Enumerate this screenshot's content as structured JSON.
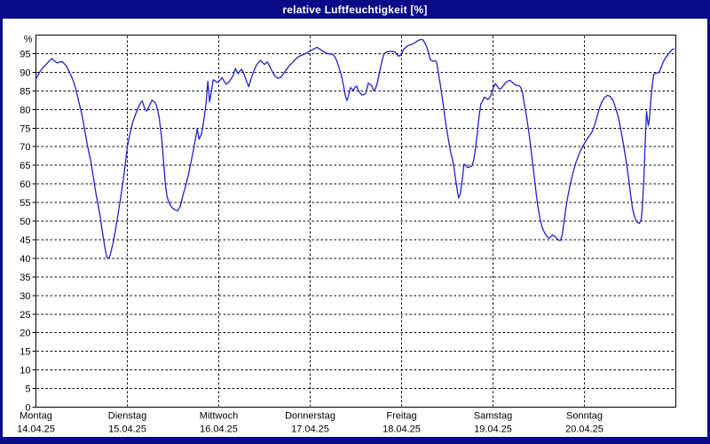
{
  "window": {
    "title": "relative Luftfeuchtigkeit [%]"
  },
  "colors": {
    "frame": "#0a0a87",
    "title_text": "#ffffff",
    "plot_background": "#ffffff",
    "grid": "#000000",
    "axis": "#000000",
    "line": "#2121cc",
    "label_text": "#000000"
  },
  "chart_data": {
    "type": "line",
    "title": "relative Luftfeuchtigkeit [%]",
    "ylabel": "%",
    "xlabel": "",
    "ylim": [
      0,
      100
    ],
    "y_tick_step": 5,
    "y_ticks": [
      0,
      5,
      10,
      15,
      20,
      25,
      30,
      35,
      40,
      45,
      50,
      55,
      60,
      65,
      70,
      75,
      80,
      85,
      90,
      95
    ],
    "y_unit_label": "%",
    "grid": "dashed",
    "legend_position": "none",
    "x_days": [
      {
        "label": "Montag",
        "date": "14.04.25"
      },
      {
        "label": "Dienstag",
        "date": "15.04.25"
      },
      {
        "label": "Mittwoch",
        "date": "16.04.25"
      },
      {
        "label": "Donnerstag",
        "date": "17.04.25"
      },
      {
        "label": "Freitag",
        "date": "18.04.25"
      },
      {
        "label": "Samstag",
        "date": "19.04.25"
      },
      {
        "label": "Sonntag",
        "date": "20.04.25"
      }
    ],
    "series": [
      {
        "name": "relative Luftfeuchtigkeit",
        "unit": "%",
        "x_unit": "days since Montag 14.04.25 00:00",
        "points": [
          [
            0.0,
            88.2
          ],
          [
            0.039,
            90.0
          ],
          [
            0.078,
            91.3
          ],
          [
            0.116,
            92.2
          ],
          [
            0.155,
            93.3
          ],
          [
            0.175,
            93.7
          ],
          [
            0.204,
            93.0
          ],
          [
            0.233,
            92.5
          ],
          [
            0.262,
            92.8
          ],
          [
            0.291,
            92.8
          ],
          [
            0.33,
            91.8
          ],
          [
            0.368,
            90.0
          ],
          [
            0.407,
            87.8
          ],
          [
            0.436,
            85.5
          ],
          [
            0.465,
            82.5
          ],
          [
            0.504,
            78.5
          ],
          [
            0.533,
            74.5
          ],
          [
            0.562,
            70.5
          ],
          [
            0.601,
            66.0
          ],
          [
            0.63,
            61.5
          ],
          [
            0.659,
            57.0
          ],
          [
            0.698,
            52.0
          ],
          [
            0.727,
            47.0
          ],
          [
            0.756,
            42.5
          ],
          [
            0.776,
            40.3
          ],
          [
            0.795,
            39.9
          ],
          [
            0.814,
            41.0
          ],
          [
            0.843,
            44.0
          ],
          [
            0.873,
            48.0
          ],
          [
            0.902,
            52.5
          ],
          [
            0.931,
            57.0
          ],
          [
            0.96,
            62.0
          ],
          [
            0.979,
            65.5
          ],
          [
            1.0,
            70.0
          ],
          [
            1.028,
            73.5
          ],
          [
            1.057,
            76.5
          ],
          [
            1.086,
            78.5
          ],
          [
            1.115,
            80.3
          ],
          [
            1.144,
            81.8
          ],
          [
            1.163,
            82.3
          ],
          [
            1.193,
            80.0
          ],
          [
            1.212,
            79.6
          ],
          [
            1.241,
            81.0
          ],
          [
            1.27,
            82.5
          ],
          [
            1.299,
            82.0
          ],
          [
            1.319,
            81.0
          ],
          [
            1.348,
            78.0
          ],
          [
            1.377,
            72.0
          ],
          [
            1.396,
            66.0
          ],
          [
            1.416,
            60.0
          ],
          [
            1.435,
            56.5
          ],
          [
            1.464,
            54.5
          ],
          [
            1.493,
            53.5
          ],
          [
            1.522,
            53.0
          ],
          [
            1.551,
            52.8
          ],
          [
            1.58,
            54.0
          ],
          [
            1.609,
            57.0
          ],
          [
            1.638,
            59.5
          ],
          [
            1.668,
            62.5
          ],
          [
            1.697,
            66.0
          ],
          [
            1.726,
            69.5
          ],
          [
            1.745,
            72.0
          ],
          [
            1.765,
            74.8
          ],
          [
            1.784,
            72.0
          ],
          [
            1.813,
            73.5
          ],
          [
            1.842,
            78.0
          ],
          [
            1.862,
            82.0
          ],
          [
            1.881,
            87.6
          ],
          [
            1.9,
            82.0
          ],
          [
            1.92,
            85.0
          ],
          [
            1.939,
            88.0
          ],
          [
            1.968,
            87.6
          ],
          [
            1.988,
            87.2
          ],
          [
            2.017,
            88.0
          ],
          [
            2.036,
            88.6
          ],
          [
            2.065,
            87.3
          ],
          [
            2.084,
            86.8
          ],
          [
            2.114,
            87.5
          ],
          [
            2.143,
            88.5
          ],
          [
            2.162,
            89.5
          ],
          [
            2.182,
            91.0
          ],
          [
            2.211,
            89.6
          ],
          [
            2.23,
            90.3
          ],
          [
            2.249,
            90.8
          ],
          [
            2.269,
            90.0
          ],
          [
            2.298,
            88.0
          ],
          [
            2.327,
            86.1
          ],
          [
            2.356,
            88.5
          ],
          [
            2.385,
            90.5
          ],
          [
            2.414,
            92.0
          ],
          [
            2.453,
            93.2
          ],
          [
            2.482,
            92.5
          ],
          [
            2.501,
            92.1
          ],
          [
            2.531,
            92.8
          ],
          [
            2.56,
            91.5
          ],
          [
            2.589,
            90.0
          ],
          [
            2.618,
            88.9
          ],
          [
            2.647,
            88.4
          ],
          [
            2.676,
            88.6
          ],
          [
            2.705,
            89.5
          ],
          [
            2.734,
            90.5
          ],
          [
            2.763,
            91.5
          ],
          [
            2.792,
            92.3
          ],
          [
            2.821,
            93.0
          ],
          [
            2.851,
            93.8
          ],
          [
            2.88,
            94.3
          ],
          [
            2.909,
            94.6
          ],
          [
            2.938,
            94.9
          ],
          [
            2.967,
            95.3
          ],
          [
            3.005,
            95.8
          ],
          [
            3.034,
            96.2
          ],
          [
            3.073,
            96.7
          ],
          [
            3.102,
            96.3
          ],
          [
            3.131,
            95.8
          ],
          [
            3.16,
            95.3
          ],
          [
            3.189,
            95.0
          ],
          [
            3.219,
            94.9
          ],
          [
            3.248,
            94.8
          ],
          [
            3.267,
            94.3
          ],
          [
            3.287,
            93.3
          ],
          [
            3.306,
            92.0
          ],
          [
            3.325,
            90.5
          ],
          [
            3.345,
            88.8
          ],
          [
            3.364,
            86.5
          ],
          [
            3.383,
            84.0
          ],
          [
            3.393,
            82.9
          ],
          [
            3.403,
            82.4
          ],
          [
            3.422,
            84.0
          ],
          [
            3.441,
            85.9
          ],
          [
            3.461,
            85.4
          ],
          [
            3.47,
            85.1
          ],
          [
            3.49,
            85.9
          ],
          [
            3.509,
            86.3
          ],
          [
            3.528,
            85.0
          ],
          [
            3.548,
            84.4
          ],
          [
            3.567,
            83.9
          ],
          [
            3.587,
            84.0
          ],
          [
            3.606,
            84.3
          ],
          [
            3.625,
            86.0
          ],
          [
            3.635,
            87.1
          ],
          [
            3.654,
            86.8
          ],
          [
            3.674,
            86.3
          ],
          [
            3.693,
            85.1
          ],
          [
            3.713,
            85.5
          ],
          [
            3.732,
            87.0
          ],
          [
            3.751,
            89.1
          ],
          [
            3.771,
            91.5
          ],
          [
            3.79,
            93.5
          ],
          [
            3.81,
            95.0
          ],
          [
            3.839,
            95.5
          ],
          [
            3.868,
            95.6
          ],
          [
            3.897,
            95.6
          ],
          [
            3.926,
            95.5
          ],
          [
            3.946,
            94.9
          ],
          [
            3.965,
            94.3
          ],
          [
            3.985,
            94.6
          ],
          [
            4.004,
            95.3
          ],
          [
            4.023,
            96.2
          ],
          [
            4.052,
            96.8
          ],
          [
            4.072,
            97.2
          ],
          [
            4.101,
            97.4
          ],
          [
            4.12,
            97.6
          ],
          [
            4.149,
            98.0
          ],
          [
            4.178,
            98.5
          ],
          [
            4.207,
            98.8
          ],
          [
            4.236,
            98.7
          ],
          [
            4.256,
            97.8
          ],
          [
            4.275,
            96.8
          ],
          [
            4.295,
            95.3
          ],
          [
            4.314,
            93.4
          ],
          [
            4.343,
            93.0
          ],
          [
            4.363,
            93.1
          ],
          [
            4.382,
            92.8
          ],
          [
            4.401,
            90.0
          ],
          [
            4.421,
            87.0
          ],
          [
            4.44,
            84.0
          ],
          [
            4.46,
            80.5
          ],
          [
            4.479,
            77.0
          ],
          [
            4.498,
            74.0
          ],
          [
            4.518,
            71.0
          ],
          [
            4.537,
            68.5
          ],
          [
            4.557,
            66.5
          ],
          [
            4.576,
            64.0
          ],
          [
            4.595,
            60.5
          ],
          [
            4.615,
            57.5
          ],
          [
            4.624,
            56.2
          ],
          [
            4.644,
            57.5
          ],
          [
            4.663,
            61.0
          ],
          [
            4.683,
            65.3
          ],
          [
            4.702,
            65.0
          ],
          [
            4.721,
            64.4
          ],
          [
            4.75,
            64.6
          ],
          [
            4.77,
            64.8
          ],
          [
            4.789,
            66.5
          ],
          [
            4.808,
            69.5
          ],
          [
            4.828,
            73.5
          ],
          [
            4.847,
            78.0
          ],
          [
            4.867,
            81.5
          ],
          [
            4.886,
            82.3
          ],
          [
            4.905,
            83.3
          ],
          [
            4.925,
            83.0
          ],
          [
            4.944,
            82.7
          ],
          [
            4.964,
            83.2
          ],
          [
            4.983,
            84.2
          ],
          [
            5.003,
            85.8
          ],
          [
            5.022,
            87.0
          ],
          [
            5.041,
            86.5
          ],
          [
            5.061,
            85.7
          ],
          [
            5.08,
            85.5
          ],
          [
            5.1,
            86.0
          ],
          [
            5.119,
            86.6
          ],
          [
            5.138,
            87.2
          ],
          [
            5.167,
            87.7
          ],
          [
            5.187,
            87.8
          ],
          [
            5.206,
            87.4
          ],
          [
            5.235,
            86.8
          ],
          [
            5.264,
            86.4
          ],
          [
            5.284,
            86.4
          ],
          [
            5.303,
            86.0
          ],
          [
            5.322,
            84.5
          ],
          [
            5.342,
            81.5
          ],
          [
            5.361,
            79.0
          ],
          [
            5.38,
            76.0
          ],
          [
            5.4,
            72.5
          ],
          [
            5.419,
            68.5
          ],
          [
            5.439,
            64.5
          ],
          [
            5.458,
            60.5
          ],
          [
            5.477,
            56.5
          ],
          [
            5.497,
            53.0
          ],
          [
            5.516,
            50.5
          ],
          [
            5.535,
            48.5
          ],
          [
            5.565,
            46.8
          ],
          [
            5.594,
            45.8
          ],
          [
            5.613,
            45.4
          ],
          [
            5.632,
            45.8
          ],
          [
            5.652,
            46.3
          ],
          [
            5.681,
            45.8
          ],
          [
            5.7,
            45.2
          ],
          [
            5.72,
            44.9
          ],
          [
            5.739,
            44.8
          ],
          [
            5.758,
            46.5
          ],
          [
            5.778,
            50.0
          ],
          [
            5.797,
            53.5
          ],
          [
            5.817,
            56.5
          ],
          [
            5.846,
            60.0
          ],
          [
            5.875,
            63.0
          ],
          [
            5.904,
            65.5
          ],
          [
            5.933,
            67.5
          ],
          [
            5.962,
            69.2
          ],
          [
            5.991,
            70.5
          ],
          [
            6.021,
            71.8
          ],
          [
            6.05,
            72.8
          ],
          [
            6.079,
            73.7
          ],
          [
            6.108,
            75.5
          ],
          [
            6.137,
            78.0
          ],
          [
            6.166,
            80.5
          ],
          [
            6.195,
            82.3
          ],
          [
            6.224,
            83.3
          ],
          [
            6.253,
            83.8
          ],
          [
            6.283,
            83.5
          ],
          [
            6.312,
            82.5
          ],
          [
            6.341,
            80.5
          ],
          [
            6.37,
            78.0
          ],
          [
            6.399,
            74.5
          ],
          [
            6.428,
            70.5
          ],
          [
            6.457,
            66.0
          ],
          [
            6.486,
            61.0
          ],
          [
            6.506,
            57.0
          ],
          [
            6.525,
            53.5
          ],
          [
            6.545,
            51.5
          ],
          [
            6.564,
            50.2
          ],
          [
            6.583,
            49.6
          ],
          [
            6.602,
            49.4
          ],
          [
            6.622,
            50.5
          ],
          [
            6.631,
            53.0
          ],
          [
            6.641,
            57.0
          ],
          [
            6.651,
            62.0
          ],
          [
            6.66,
            68.0
          ],
          [
            6.67,
            74.0
          ],
          [
            6.68,
            79.5
          ],
          [
            6.689,
            77.5
          ],
          [
            6.699,
            75.6
          ],
          [
            6.709,
            77.0
          ],
          [
            6.719,
            80.0
          ],
          [
            6.728,
            83.0
          ],
          [
            6.738,
            85.5
          ],
          [
            6.748,
            87.5
          ],
          [
            6.757,
            89.3
          ],
          [
            6.777,
            89.8
          ],
          [
            6.796,
            89.8
          ],
          [
            6.815,
            89.9
          ],
          [
            6.835,
            91.0
          ],
          [
            6.854,
            92.3
          ],
          [
            6.873,
            93.3
          ],
          [
            6.893,
            94.1
          ],
          [
            6.912,
            94.7
          ],
          [
            6.931,
            95.3
          ],
          [
            6.951,
            95.9
          ],
          [
            6.97,
            96.2
          ],
          [
            6.98,
            96.3
          ]
        ]
      }
    ]
  }
}
